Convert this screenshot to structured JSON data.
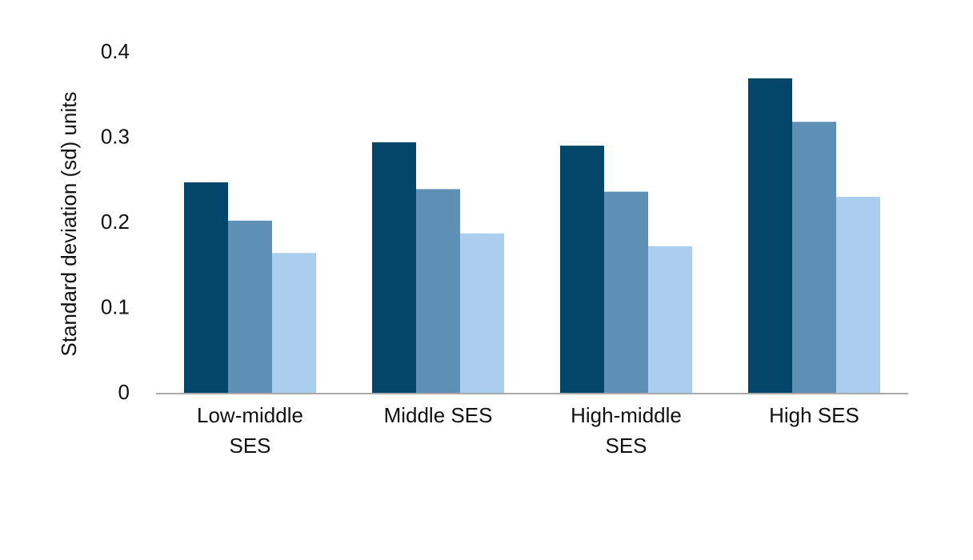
{
  "chart_data": {
    "type": "bar",
    "y_label": "Standard deviation (sd) units",
    "categories": [
      "Low-middle SES",
      "Middle SES",
      "High-middle SES",
      "High SES"
    ],
    "series": [
      {
        "color": "#03466a",
        "values": [
          0.248,
          0.295,
          0.291,
          0.37
        ]
      },
      {
        "color": "#5e90b5",
        "values": [
          0.203,
          0.24,
          0.237,
          0.319
        ]
      },
      {
        "color": "#abcdee",
        "values": [
          0.165,
          0.188,
          0.173,
          0.231
        ]
      }
    ],
    "ylim": [
      0,
      0.4
    ],
    "yticks": [
      0,
      0.1,
      0.2,
      0.3,
      0.4
    ],
    "grid": false
  }
}
